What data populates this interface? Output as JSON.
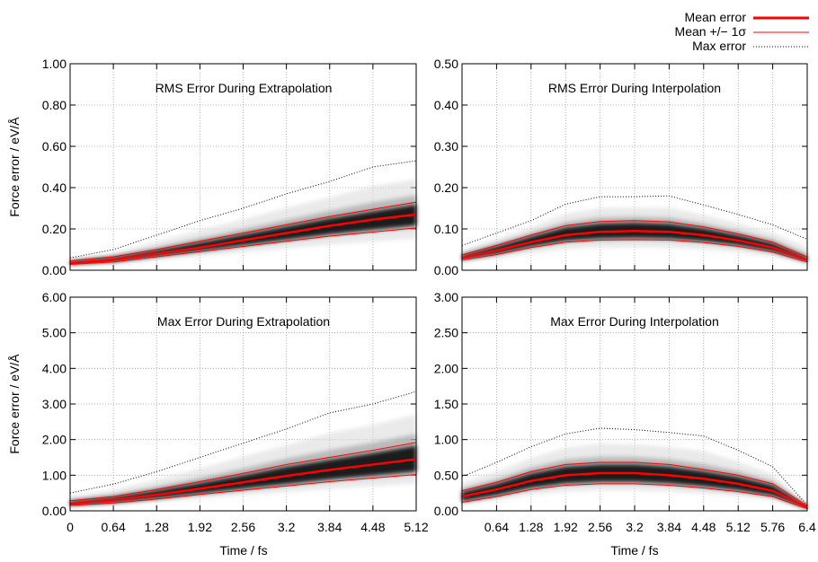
{
  "legend": {
    "entries": [
      "Mean error",
      "Mean +/− 1σ",
      "Max error"
    ]
  },
  "colors": {
    "mean": "#ff0000",
    "sigma": "#ff0000",
    "max": "#000000",
    "grid": "#a0a0a0",
    "shade_dark": "#000000",
    "shade_light": "#dcdcdc"
  },
  "chart_data": [
    {
      "type": "line",
      "title": "RMS Error During Extrapolation",
      "xlabel": "",
      "ylabel": "Force error / eV/Å",
      "xlim": [
        0,
        5.12
      ],
      "ylim": [
        0,
        1.0
      ],
      "x_ticks": [
        "0",
        "0.64",
        "1.28",
        "1.92",
        "2.56",
        "3.2",
        "3.84",
        "4.48",
        "5.12"
      ],
      "y_ticks": [
        "0.00",
        "0.20",
        "0.40",
        "0.60",
        "0.80",
        "1.00"
      ],
      "grid": true,
      "x": [
        0,
        0.64,
        1.28,
        1.92,
        2.56,
        3.2,
        3.84,
        4.48,
        5.12
      ],
      "series": [
        {
          "name": "Mean error",
          "values": [
            0.035,
            0.05,
            0.08,
            0.11,
            0.145,
            0.18,
            0.215,
            0.245,
            0.27
          ]
        },
        {
          "name": "Mean +/− 1σ",
          "values": [
            0.045,
            0.065,
            0.1,
            0.14,
            0.18,
            0.22,
            0.26,
            0.295,
            0.33
          ]
        },
        {
          "name": "Mean +/− 1σ",
          "values": [
            0.028,
            0.04,
            0.065,
            0.09,
            0.115,
            0.14,
            0.165,
            0.185,
            0.205
          ]
        },
        {
          "name": "Max error",
          "values": [
            0.06,
            0.1,
            0.17,
            0.24,
            0.3,
            0.37,
            0.43,
            0.5,
            0.53
          ]
        }
      ]
    },
    {
      "type": "line",
      "title": "RMS Error During Interpolation",
      "xlabel": "",
      "ylabel": "",
      "xlim": [
        0,
        6.4
      ],
      "ylim": [
        0,
        0.5
      ],
      "x_ticks": [
        "0.64",
        "1.28",
        "1.92",
        "2.56",
        "3.2",
        "3.84",
        "4.48",
        "5.12",
        "5.76",
        "6.4"
      ],
      "y_ticks": [
        "0.00",
        "0.10",
        "0.20",
        "0.30",
        "0.40",
        "0.50"
      ],
      "grid": true,
      "x": [
        0,
        0.64,
        1.28,
        1.92,
        2.56,
        3.2,
        3.84,
        4.48,
        5.12,
        5.76,
        6.4
      ],
      "series": [
        {
          "name": "Mean error",
          "values": [
            0.03,
            0.048,
            0.068,
            0.085,
            0.093,
            0.095,
            0.093,
            0.085,
            0.072,
            0.055,
            0.025
          ]
        },
        {
          "name": "Mean +/− 1σ",
          "values": [
            0.037,
            0.06,
            0.085,
            0.108,
            0.118,
            0.12,
            0.117,
            0.105,
            0.088,
            0.068,
            0.032
          ]
        },
        {
          "name": "Mean +/− 1σ",
          "values": [
            0.025,
            0.038,
            0.055,
            0.068,
            0.073,
            0.074,
            0.073,
            0.067,
            0.058,
            0.044,
            0.02
          ]
        },
        {
          "name": "Max error",
          "values": [
            0.06,
            0.09,
            0.12,
            0.16,
            0.178,
            0.178,
            0.18,
            0.158,
            0.135,
            0.11,
            0.075
          ]
        }
      ]
    },
    {
      "type": "line",
      "title": "Max Error During Extrapolation",
      "xlabel": "Time / fs",
      "ylabel": "Force error / eV/Å",
      "xlim": [
        0,
        5.12
      ],
      "ylim": [
        0,
        6.0
      ],
      "x_ticks": [
        "0",
        "0.64",
        "1.28",
        "1.92",
        "2.56",
        "3.2",
        "3.84",
        "4.48",
        "5.12"
      ],
      "y_ticks": [
        "0.00",
        "1.00",
        "2.00",
        "3.00",
        "4.00",
        "5.00",
        "6.00"
      ],
      "grid": true,
      "x": [
        0,
        0.64,
        1.28,
        1.92,
        2.56,
        3.2,
        3.84,
        4.48,
        5.12
      ],
      "series": [
        {
          "name": "Mean error",
          "values": [
            0.2,
            0.3,
            0.45,
            0.62,
            0.8,
            0.98,
            1.15,
            1.3,
            1.45
          ]
        },
        {
          "name": "Mean +/− 1σ",
          "values": [
            0.28,
            0.4,
            0.6,
            0.82,
            1.05,
            1.3,
            1.5,
            1.7,
            1.92
          ]
        },
        {
          "name": "Mean +/− 1σ",
          "values": [
            0.15,
            0.22,
            0.33,
            0.46,
            0.58,
            0.7,
            0.82,
            0.92,
            1.02
          ]
        },
        {
          "name": "Max error",
          "values": [
            0.5,
            0.75,
            1.1,
            1.5,
            1.9,
            2.3,
            2.75,
            3.0,
            3.35
          ]
        }
      ]
    },
    {
      "type": "line",
      "title": "Max Error During Interpolation",
      "xlabel": "Time / fs",
      "ylabel": "",
      "xlim": [
        0,
        6.4
      ],
      "ylim": [
        0,
        3.0
      ],
      "x_ticks": [
        "0.64",
        "1.28",
        "1.92",
        "2.56",
        "3.2",
        "3.84",
        "4.48",
        "5.12",
        "5.76",
        "6.4"
      ],
      "y_ticks": [
        "0.00",
        "0.50",
        "1.00",
        "1.50",
        "2.00",
        "2.50",
        "3.00"
      ],
      "grid": true,
      "x": [
        0,
        0.64,
        1.28,
        1.92,
        2.56,
        3.2,
        3.84,
        4.48,
        5.12,
        5.76,
        6.4
      ],
      "series": [
        {
          "name": "Mean error",
          "values": [
            0.2,
            0.3,
            0.42,
            0.5,
            0.53,
            0.53,
            0.5,
            0.45,
            0.38,
            0.28,
            0.05
          ]
        },
        {
          "name": "Mean +/− 1σ",
          "values": [
            0.28,
            0.4,
            0.55,
            0.65,
            0.68,
            0.68,
            0.65,
            0.58,
            0.5,
            0.38,
            0.07
          ]
        },
        {
          "name": "Mean +/− 1σ",
          "values": [
            0.12,
            0.2,
            0.3,
            0.36,
            0.38,
            0.38,
            0.36,
            0.32,
            0.27,
            0.2,
            0.03
          ]
        },
        {
          "name": "Max error",
          "values": [
            0.48,
            0.68,
            0.9,
            1.08,
            1.16,
            1.14,
            1.1,
            1.05,
            0.85,
            0.62,
            0.08
          ]
        }
      ]
    }
  ]
}
